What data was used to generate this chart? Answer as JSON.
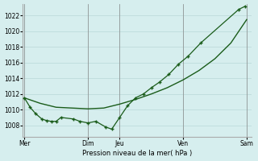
{
  "xlabel": "Pression niveau de la mer( hPa )",
  "ylim": [
    1006.5,
    1023.5
  ],
  "yticks": [
    1008,
    1010,
    1012,
    1014,
    1016,
    1018,
    1020,
    1022
  ],
  "bg_color": "#d6eeee",
  "grid_color": "#b8d8d8",
  "line_color": "#1a5c1a",
  "vline_color": "#888888",
  "day_vlines": [
    0.0,
    2.0,
    3.0,
    5.0,
    7.0
  ],
  "xtick_positions": [
    0,
    2,
    3,
    5,
    7
  ],
  "xtick_labels": [
    "Mer",
    "Dim",
    "Jeu",
    "Ven",
    "Sam"
  ],
  "xlim": [
    -0.05,
    7.15
  ],
  "smooth_x": [
    0.0,
    0.5,
    1.0,
    1.5,
    2.0,
    2.5,
    3.0,
    3.5,
    4.0,
    4.5,
    5.0,
    5.5,
    6.0,
    6.5,
    7.0
  ],
  "smooth_y": [
    1011.5,
    1010.8,
    1010.3,
    1010.2,
    1010.1,
    1010.2,
    1010.7,
    1011.3,
    1012.0,
    1012.8,
    1013.8,
    1015.0,
    1016.5,
    1018.5,
    1021.5
  ],
  "marker_x": [
    0.0,
    0.18,
    0.35,
    0.55,
    0.7,
    0.85,
    1.0,
    1.15,
    1.55,
    1.75,
    2.0,
    2.25,
    2.55,
    2.75,
    3.0,
    3.25,
    3.5,
    3.75,
    4.0,
    4.25,
    4.55,
    4.85,
    5.15,
    5.55,
    6.75,
    6.95
  ],
  "marker_y": [
    1011.5,
    1010.3,
    1009.5,
    1008.8,
    1008.6,
    1008.5,
    1008.5,
    1009.0,
    1008.8,
    1008.5,
    1008.3,
    1008.5,
    1007.8,
    1007.5,
    1009.0,
    1010.5,
    1011.5,
    1012.0,
    1012.8,
    1013.5,
    1014.5,
    1015.8,
    1016.8,
    1018.5,
    1022.8,
    1023.2
  ]
}
